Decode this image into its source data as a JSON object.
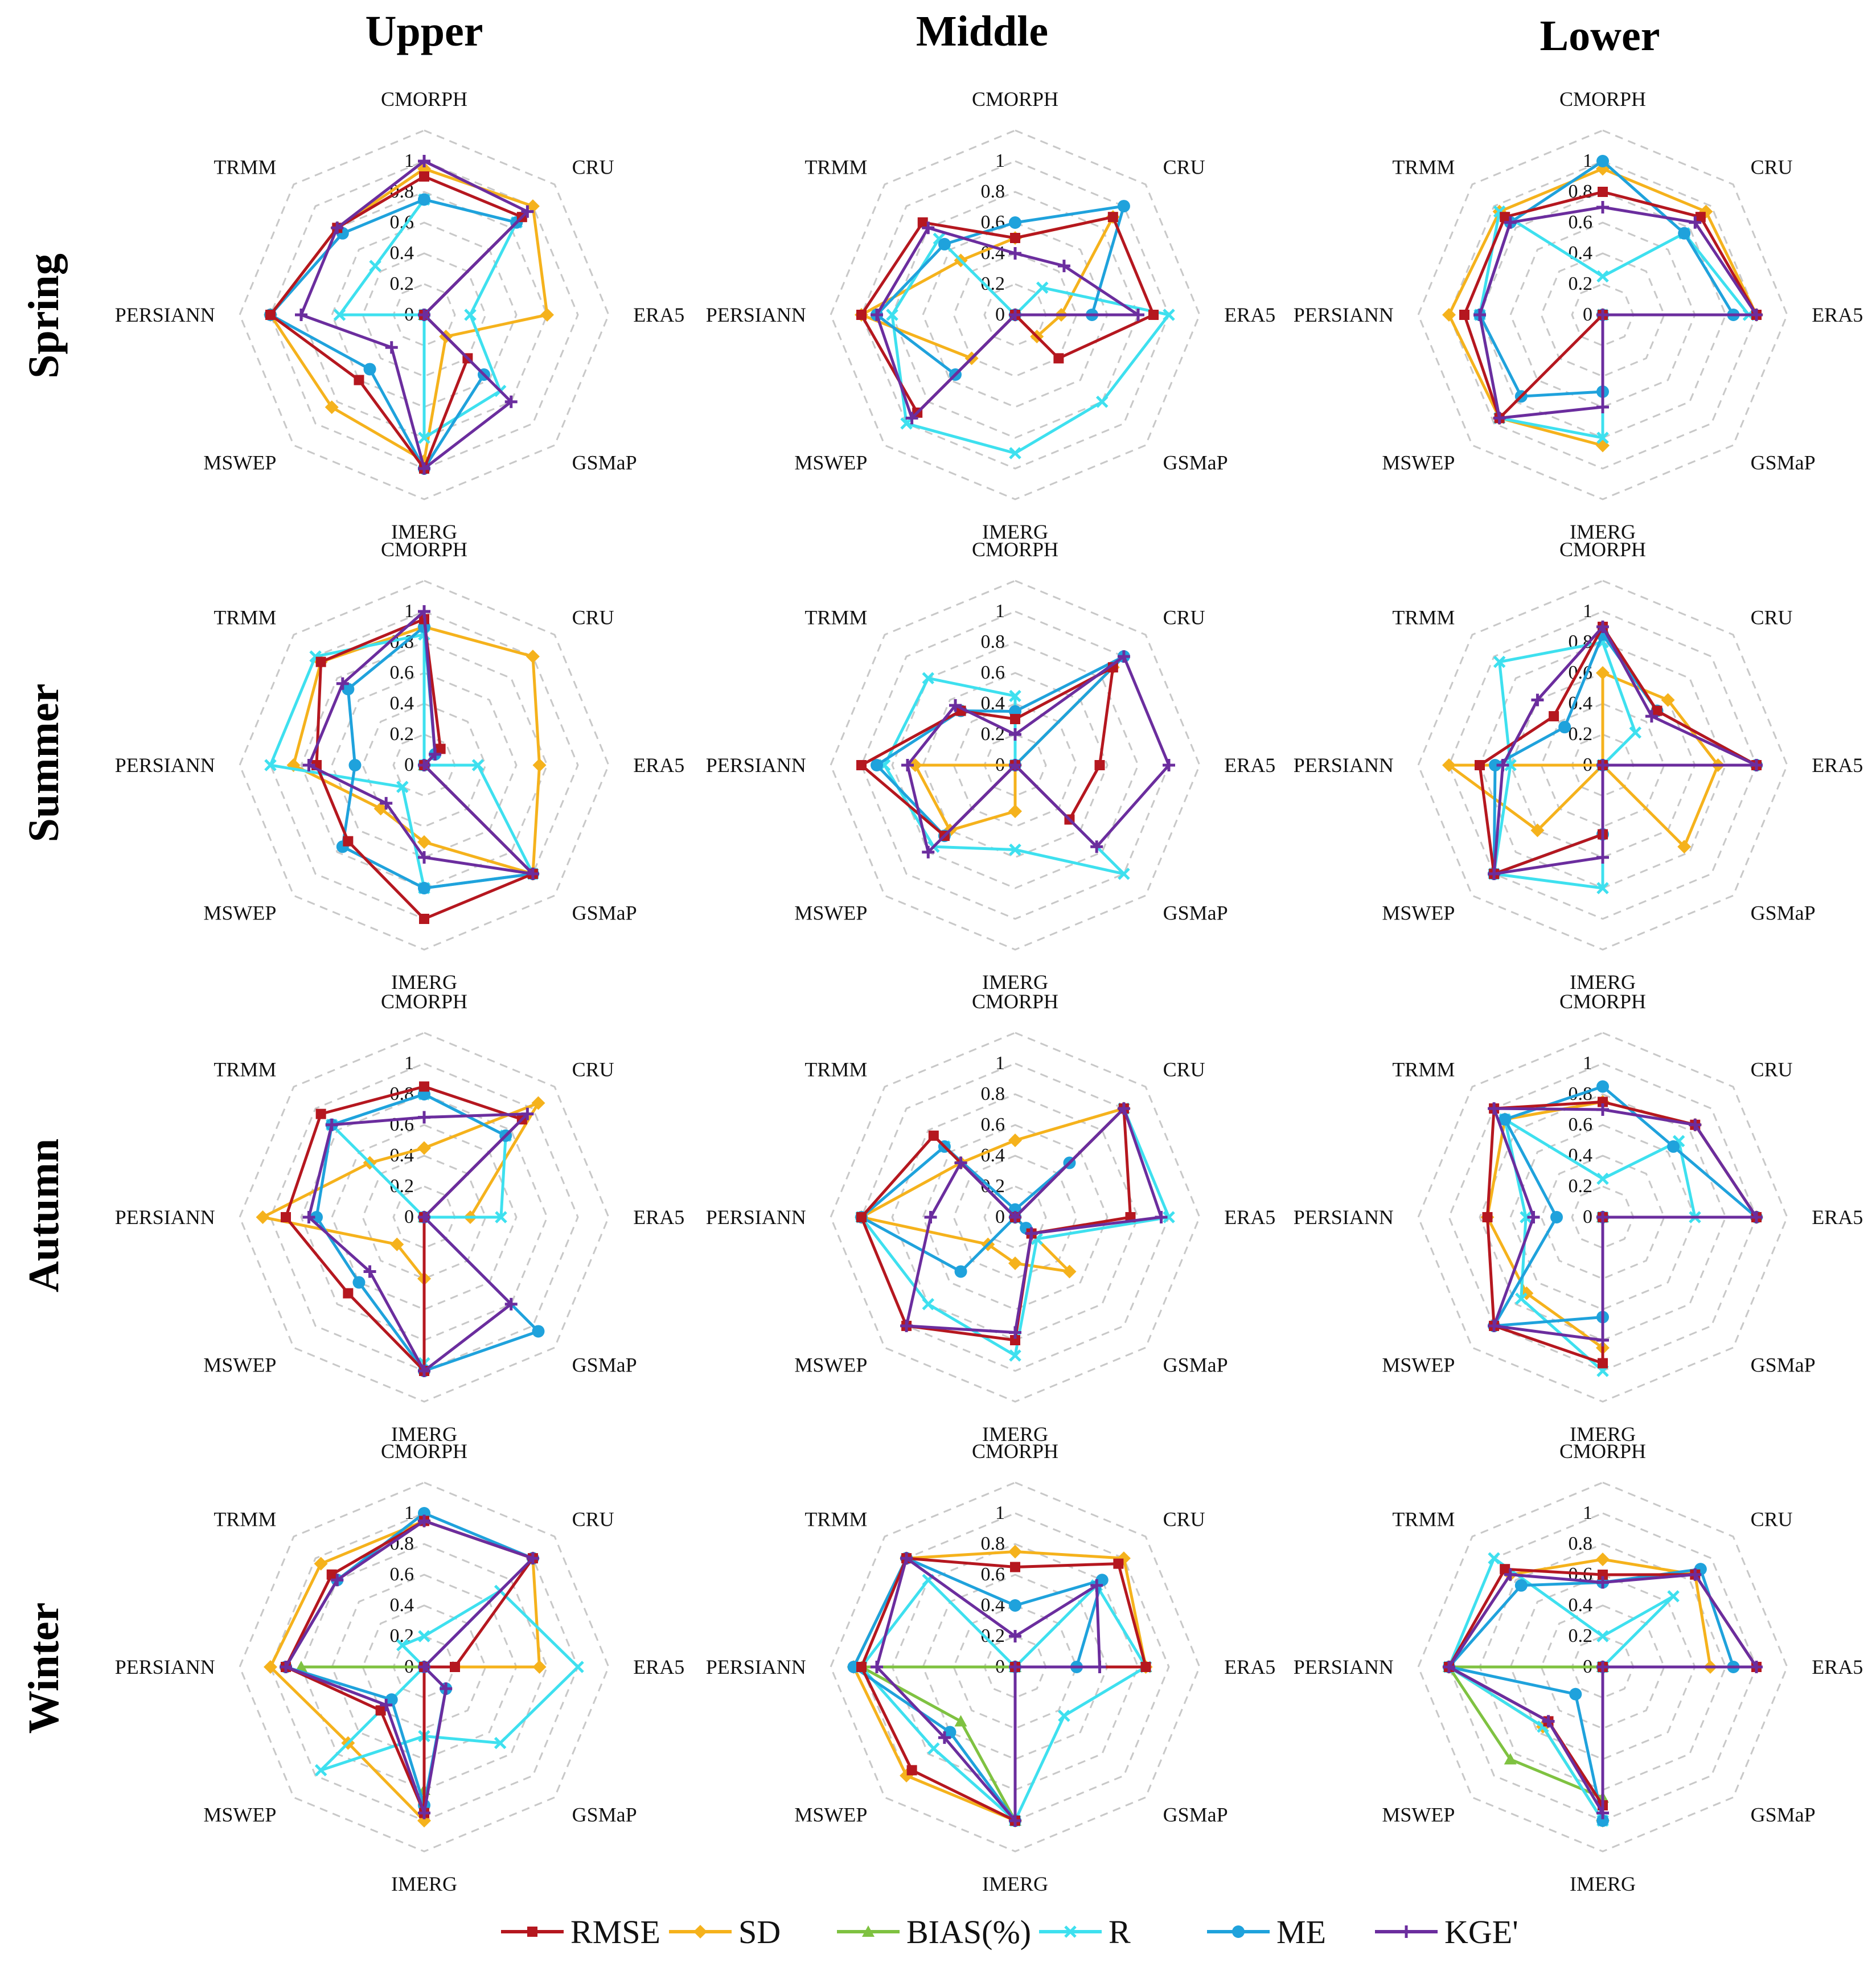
{
  "figure": {
    "columns": [
      "Upper",
      "Middle",
      "Lower"
    ],
    "rows": [
      "Spring",
      "Summer",
      "Autumn",
      "Winter"
    ]
  },
  "legend": [
    {
      "key": "RMSE",
      "label": "RMSE",
      "color": "#b5171f",
      "marker": "square"
    },
    {
      "key": "SD",
      "label": "SD",
      "color": "#f5b21c",
      "marker": "diamond"
    },
    {
      "key": "BIAS",
      "label": "BIAS(%)",
      "color": "#7fc241",
      "marker": "triangle"
    },
    {
      "key": "R",
      "label": "R",
      "color": "#3ee0ef",
      "marker": "x"
    },
    {
      "key": "ME",
      "label": "ME",
      "color": "#1fa2dc",
      "marker": "circle"
    },
    {
      "key": "KGE",
      "label": "KGE'",
      "color": "#6b2d9e",
      "marker": "plus"
    }
  ],
  "chart_data": {
    "type": "radar",
    "axes": [
      "CMORPH",
      "CRU",
      "ERA5",
      "GSMaP",
      "IMERG",
      "MSWEP",
      "PERSIANN",
      "TRMM"
    ],
    "rticks": [
      "0",
      "0.2",
      "0.4",
      "0.6",
      "0.8",
      "1"
    ],
    "rlim": [
      0,
      1
    ],
    "panels": [
      {
        "row": "Spring",
        "column": "Upper",
        "series": {
          "RMSE": [
            0.9,
            0.9,
            0.0,
            0.4,
            1.0,
            0.6,
            1.0,
            0.8
          ],
          "SD": [
            0.95,
            1.0,
            0.8,
            0.2,
            0.95,
            0.85,
            1.0,
            0.8
          ],
          "BIAS": [
            0.0,
            0.0,
            0.0,
            0.0,
            0.0,
            0.0,
            0.0,
            0.0
          ],
          "R": [
            0.75,
            0.85,
            0.3,
            0.7,
            0.8,
            0.0,
            0.55,
            0.45
          ],
          "ME": [
            0.75,
            0.85,
            0.0,
            0.55,
            1.0,
            0.5,
            1.0,
            0.75
          ],
          "KGE": [
            1.0,
            0.95,
            0.0,
            0.8,
            1.0,
            0.3,
            0.8,
            0.8
          ]
        }
      },
      {
        "row": "Spring",
        "column": "Middle",
        "series": {
          "RMSE": [
            0.5,
            0.9,
            0.9,
            0.4,
            0.0,
            0.9,
            1.0,
            0.85
          ],
          "SD": [
            0.5,
            0.9,
            0.3,
            0.2,
            0.0,
            0.4,
            1.0,
            0.5
          ],
          "BIAS": [
            0.0,
            0.0,
            0.0,
            0.0,
            0.0,
            0.0,
            0.0,
            0.0
          ],
          "R": [
            0.0,
            0.25,
            1.0,
            0.8,
            0.9,
            1.0,
            0.8,
            0.7
          ],
          "ME": [
            0.6,
            1.0,
            0.5,
            0.0,
            0.0,
            0.55,
            0.9,
            0.65
          ],
          "KGE": [
            0.4,
            0.45,
            0.8,
            0.0,
            0.0,
            0.95,
            0.9,
            0.8
          ]
        }
      },
      {
        "row": "Spring",
        "column": "Lower",
        "series": {
          "RMSE": [
            0.8,
            0.9,
            1.0,
            0.0,
            0.0,
            0.95,
            0.9,
            0.9
          ],
          "SD": [
            0.95,
            0.95,
            1.0,
            0.0,
            0.85,
            0.95,
            1.0,
            0.95
          ],
          "BIAS": [
            0.0,
            0.0,
            0.0,
            0.0,
            0.0,
            0.0,
            0.0,
            0.0
          ],
          "R": [
            0.25,
            0.75,
            0.95,
            0.0,
            0.8,
            0.95,
            0.8,
            0.95
          ],
          "ME": [
            1.0,
            0.75,
            0.85,
            0.0,
            0.5,
            0.75,
            0.8,
            0.85
          ],
          "KGE": [
            0.7,
            0.85,
            1.0,
            0.0,
            0.6,
            0.95,
            0.8,
            0.85
          ]
        }
      },
      {
        "row": "Summer",
        "column": "Upper",
        "series": {
          "RMSE": [
            0.95,
            0.15,
            0.0,
            1.0,
            1.0,
            0.7,
            0.7,
            0.95
          ],
          "SD": [
            0.9,
            1.0,
            0.75,
            1.0,
            0.5,
            0.4,
            0.85,
            0.95
          ],
          "BIAS": [
            0.0,
            0.0,
            0.0,
            0.0,
            0.0,
            0.0,
            0.0,
            0.0
          ],
          "R": [
            0.85,
            0.0,
            0.35,
            1.0,
            0.8,
            0.2,
            1.0,
            1.0
          ],
          "ME": [
            0.9,
            0.1,
            0.0,
            1.0,
            0.8,
            0.75,
            0.45,
            0.7
          ],
          "KGE": [
            1.0,
            0.1,
            0.0,
            1.0,
            0.6,
            0.35,
            0.75,
            0.75
          ]
        }
      },
      {
        "row": "Summer",
        "column": "Middle",
        "series": {
          "RMSE": [
            0.3,
            0.9,
            0.55,
            0.5,
            0.0,
            0.65,
            1.0,
            0.5
          ],
          "SD": [
            0.0,
            0.9,
            0.0,
            0.0,
            0.3,
            0.6,
            0.65,
            0.0
          ],
          "BIAS": [
            0.0,
            0.0,
            0.0,
            0.0,
            0.0,
            0.0,
            0.0,
            0.0
          ],
          "R": [
            0.45,
            0.0,
            0.0,
            1.0,
            0.55,
            0.75,
            0.85,
            0.8
          ],
          "ME": [
            0.35,
            1.0,
            0.0,
            0.0,
            0.0,
            0.65,
            0.9,
            0.5
          ],
          "KGE": [
            0.2,
            1.0,
            1.0,
            0.75,
            0.0,
            0.8,
            0.7,
            0.55
          ]
        }
      },
      {
        "row": "Summer",
        "column": "Lower",
        "series": {
          "RMSE": [
            0.9,
            0.5,
            1.0,
            0.0,
            0.45,
            1.0,
            0.8,
            0.45
          ],
          "SD": [
            0.6,
            0.6,
            0.75,
            0.75,
            0.0,
            0.6,
            1.0,
            0.0
          ],
          "BIAS": [
            0.0,
            0.0,
            0.0,
            0.0,
            0.0,
            0.0,
            0.0,
            0.0
          ],
          "R": [
            0.8,
            0.3,
            0.0,
            0.0,
            0.8,
            1.0,
            0.6,
            0.95
          ],
          "ME": [
            0.85,
            0.5,
            1.0,
            0.0,
            0.45,
            1.0,
            0.7,
            0.35
          ],
          "KGE": [
            0.9,
            0.45,
            1.0,
            0.0,
            0.6,
            1.0,
            0.65,
            0.6
          ]
        }
      },
      {
        "row": "Autumn",
        "column": "Upper",
        "series": {
          "RMSE": [
            0.85,
            0.9,
            0.0,
            0.0,
            1.0,
            0.7,
            0.9,
            0.95
          ],
          "SD": [
            0.45,
            1.05,
            0.3,
            0.0,
            0.4,
            0.25,
            1.05,
            0.5
          ],
          "BIAS": [
            0.0,
            0.0,
            0.0,
            0.0,
            0.0,
            0.0,
            0.0,
            0.0
          ],
          "R": [
            0.8,
            0.75,
            0.5,
            0.0,
            0.95,
            0.0,
            0.0,
            0.85
          ],
          "ME": [
            0.8,
            0.75,
            0.0,
            1.05,
            1.0,
            0.6,
            0.7,
            0.85
          ],
          "KGE": [
            0.65,
            0.95,
            0.0,
            0.8,
            1.0,
            0.5,
            0.75,
            0.85
          ]
        }
      },
      {
        "row": "Autumn",
        "column": "Middle",
        "series": {
          "RMSE": [
            0.0,
            1.0,
            0.75,
            0.15,
            0.8,
            1.0,
            1.0,
            0.75
          ],
          "SD": [
            0.5,
            1.0,
            0.0,
            0.5,
            0.3,
            0.25,
            1.0,
            0.5
          ],
          "BIAS": [
            0.0,
            0.0,
            0.0,
            0.0,
            0.0,
            0.0,
            0.0,
            0.0
          ],
          "R": [
            0.0,
            1.0,
            1.0,
            0.2,
            0.9,
            0.8,
            1.0,
            0.65
          ],
          "ME": [
            0.05,
            0.5,
            0.0,
            0.1,
            0.0,
            0.5,
            1.0,
            0.65
          ],
          "KGE": [
            0.0,
            1.0,
            0.95,
            0.15,
            0.75,
            1.0,
            0.55,
            0.5
          ]
        }
      },
      {
        "row": "Autumn",
        "column": "Lower",
        "series": {
          "RMSE": [
            0.75,
            0.85,
            1.0,
            0.0,
            0.95,
            1.0,
            0.75,
            1.0
          ],
          "SD": [
            0.75,
            0.85,
            1.0,
            0.0,
            0.85,
            0.7,
            0.75,
            0.9
          ],
          "BIAS": [
            0.0,
            0.0,
            0.0,
            0.0,
            0.0,
            0.0,
            0.0,
            0.0
          ],
          "R": [
            0.25,
            0.7,
            0.6,
            0.0,
            1.0,
            0.75,
            0.5,
            0.9
          ],
          "ME": [
            0.85,
            0.65,
            1.0,
            0.0,
            0.65,
            1.0,
            0.3,
            0.9
          ],
          "KGE": [
            0.7,
            0.85,
            1.0,
            0.0,
            0.8,
            1.0,
            0.45,
            1.0
          ]
        }
      },
      {
        "row": "Winter",
        "column": "Upper",
        "series": {
          "RMSE": [
            0.95,
            1.0,
            0.2,
            0.0,
            0.95,
            0.4,
            0.9,
            0.85
          ],
          "SD": [
            0.95,
            1.0,
            0.75,
            0.0,
            1.0,
            0.7,
            1.0,
            0.95
          ],
          "BIAS": [
            0.0,
            0.0,
            0.0,
            0.0,
            0.8,
            0.0,
            0.8,
            0.0
          ],
          "R": [
            0.2,
            0.7,
            1.0,
            0.7,
            0.45,
            0.95,
            0.0,
            0.2
          ],
          "ME": [
            1.0,
            1.0,
            0.0,
            0.2,
            0.9,
            0.3,
            0.9,
            0.8
          ],
          "KGE": [
            0.95,
            1.0,
            0.0,
            0.2,
            0.95,
            0.35,
            0.9,
            0.8
          ]
        }
      },
      {
        "row": "Winter",
        "column": "Middle",
        "series": {
          "RMSE": [
            0.65,
            0.95,
            0.85,
            0.0,
            1.0,
            0.95,
            1.0,
            1.0
          ],
          "SD": [
            0.75,
            1.0,
            0.85,
            0.0,
            1.0,
            1.0,
            1.05,
            1.0
          ],
          "BIAS": [
            0.0,
            0.0,
            0.85,
            0.0,
            1.0,
            0.5,
            1.0,
            0.0
          ],
          "R": [
            0.0,
            0.75,
            0.85,
            0.45,
            1.0,
            0.75,
            1.0,
            0.8
          ],
          "ME": [
            0.4,
            0.8,
            0.4,
            0.0,
            1.0,
            0.6,
            1.05,
            1.0
          ],
          "KGE": [
            0.2,
            0.75,
            0.55,
            0.0,
            1.0,
            0.65,
            0.9,
            1.0
          ]
        }
      },
      {
        "row": "Winter",
        "column": "Lower",
        "series": {
          "RMSE": [
            0.6,
            0.85,
            1.0,
            0.0,
            0.9,
            0.5,
            1.0,
            0.9
          ],
          "SD": [
            0.7,
            0.85,
            0.7,
            0.0,
            1.0,
            0.55,
            1.0,
            0.85
          ],
          "BIAS": [
            0.0,
            0.0,
            0.0,
            0.0,
            0.85,
            0.85,
            1.0,
            0.0
          ],
          "R": [
            0.2,
            0.65,
            0.0,
            0.0,
            1.0,
            0.55,
            1.0,
            1.0
          ],
          "ME": [
            0.55,
            0.9,
            0.85,
            0.0,
            1.0,
            0.25,
            1.0,
            0.75
          ],
          "KGE": [
            0.55,
            0.85,
            1.0,
            0.0,
            0.95,
            0.5,
            1.0,
            0.85
          ]
        }
      }
    ]
  }
}
